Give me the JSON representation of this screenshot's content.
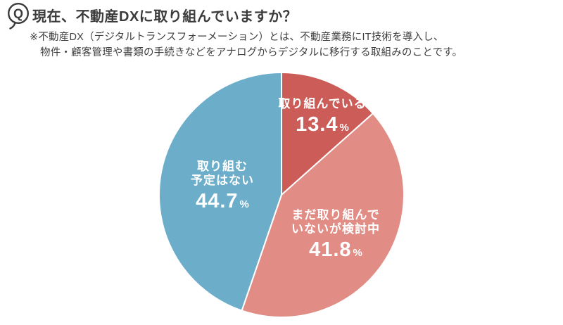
{
  "header": {
    "q_badge": "Q",
    "title": "現在、不動産DXに取り組んでいますか？",
    "note_line1": "※不動産DX（デジタルトランスフォーメーション）とは、不動産業務にIT技術を導入し、",
    "note_line2": "物件・顧客管理や書類の手続きなどをアナログからデジタルに移行する取組みのことです。"
  },
  "chart_data": {
    "type": "pie",
    "title": "現在、不動産DXに取り組んでいますか？",
    "start": "top",
    "direction": "clockwise",
    "unit": "%",
    "divider_color": "#ffffff",
    "text_color": "#ffffff",
    "slices": [
      {
        "label": "取り組んでいる",
        "label_lines": [
          "取り組んでいる"
        ],
        "value": 13.4,
        "color": "#cc5c57"
      },
      {
        "label": "まだ取り組んでいないが検討中",
        "label_lines": [
          "まだ取り組んで",
          "いないが検討中"
        ],
        "value": 41.8,
        "color": "#e18c85"
      },
      {
        "label": "取り組む予定はない",
        "label_lines": [
          "取り組む",
          "予定はない"
        ],
        "value": 44.7,
        "color": "#6cadca"
      }
    ]
  }
}
